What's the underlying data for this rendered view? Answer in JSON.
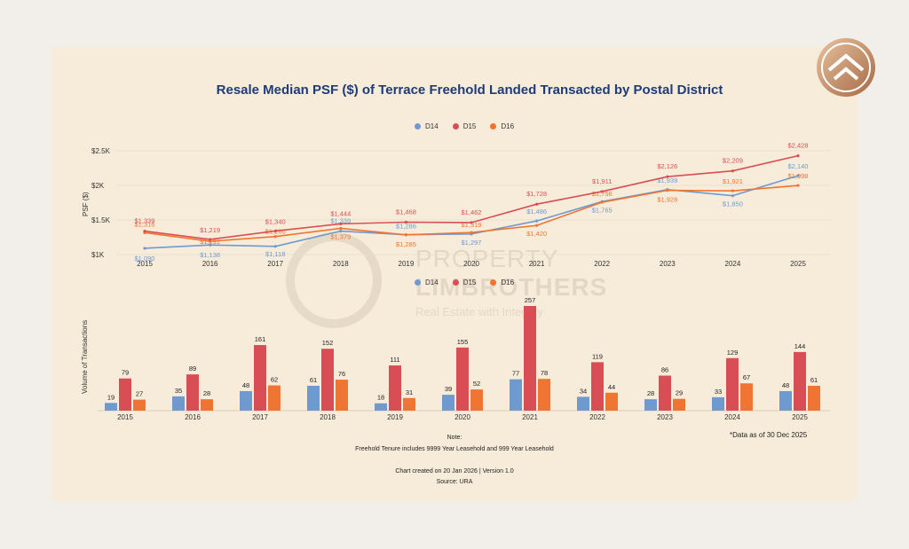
{
  "brand": {
    "name_line1": "PROPERTY",
    "name_line2": "LIMBROTHERS",
    "tagline": "Real Estate with Integrity",
    "logo_color_dark": "#a56a44",
    "logo_color_light": "#e8c2a0"
  },
  "title": "Resale Median PSF ($) of Terrace Freehold Landed Transacted by Postal District",
  "colors": {
    "D14": "#6e9ad0",
    "D15": "#d94e54",
    "D16": "#f07432",
    "title": "#1f3b78",
    "card": "#f7ecd9"
  },
  "legend": [
    "D14",
    "D15",
    "D16"
  ],
  "chart_data": [
    {
      "type": "line",
      "ylabel": "PSF ($)",
      "x": [
        "2015",
        "2016",
        "2017",
        "2018",
        "2019",
        "2020",
        "2021",
        "2022",
        "2023",
        "2024",
        "2025"
      ],
      "yticks": [
        {
          "value": 1000,
          "label": "$1K"
        },
        {
          "value": 1500,
          "label": "$1.5K"
        },
        {
          "value": 2000,
          "label": "$2K"
        },
        {
          "value": 2500,
          "label": "$2.5K"
        }
      ],
      "ylim": [
        1000,
        2500
      ],
      "grid": true,
      "legend_position": "top-center",
      "series": [
        {
          "name": "D14",
          "values": [
            1090,
            1138,
            1118,
            1339,
            1286,
            1297,
            1486,
            1765,
            1939,
            1850,
            2140
          ],
          "labels": [
            "$1,090",
            "$1,138",
            "$1,118",
            "$1,339",
            "$1,286",
            "$1,297",
            "$1,486",
            "$1,765",
            "$1,939",
            "$1,850",
            "$2,140"
          ]
        },
        {
          "name": "D15",
          "values": [
            1339,
            1219,
            1340,
            1444,
            1468,
            1462,
            1728,
            1911,
            2126,
            2209,
            2428
          ],
          "labels": [
            "$1,339",
            "$1,219",
            "$1,340",
            "$1,444",
            "$1,468",
            "$1,462",
            "$1,728",
            "$1,911",
            "$2,126",
            "$2,209",
            "$2,428"
          ]
        },
        {
          "name": "D16",
          "values": [
            1316,
            1191,
            1260,
            1379,
            1285,
            1319,
            1420,
            1756,
            1928,
            1921,
            1998
          ],
          "labels": [
            "$1,316",
            "$1,191",
            "$1,260",
            "$1,379",
            "$1,285",
            "$1,319",
            "$1,420",
            "$1,756",
            "$1,928",
            "$1,921",
            "$1,998"
          ]
        }
      ]
    },
    {
      "type": "bar",
      "ylabel": "Volume of Transactions",
      "categories": [
        "2015",
        "2016",
        "2017",
        "2018",
        "2019",
        "2020",
        "2021",
        "2022",
        "2023",
        "2024",
        "2025"
      ],
      "ylim": [
        0,
        257
      ],
      "legend_position": "top-center",
      "series": [
        {
          "name": "D14",
          "values": [
            19,
            35,
            48,
            61,
            18,
            39,
            77,
            34,
            28,
            33,
            48
          ]
        },
        {
          "name": "D15",
          "values": [
            79,
            89,
            161,
            152,
            111,
            155,
            257,
            119,
            86,
            129,
            144
          ]
        },
        {
          "name": "D16",
          "values": [
            27,
            28,
            62,
            76,
            31,
            52,
            78,
            44,
            29,
            67,
            61
          ]
        }
      ]
    }
  ],
  "notes": {
    "label": "Note:",
    "text": "Freehold Tenure includes 9999 Year Leasehold and 999 Year Leasehold",
    "created": "Chart created on 20 Jan 2026 | Version 1.0",
    "source": "Source: URA",
    "data_asof": "*Data as of 30 Dec 2025"
  }
}
